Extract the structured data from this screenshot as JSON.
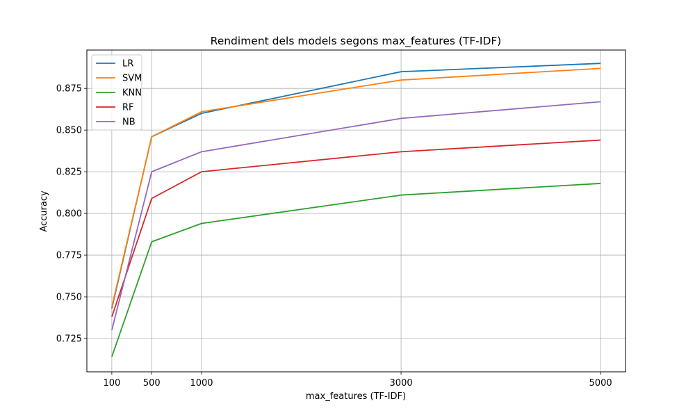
{
  "chart_data": {
    "type": "line",
    "title": "Rendiment dels models segons max_features (TF-IDF)",
    "xlabel": "max_features (TF-IDF)",
    "ylabel": "Accuracy",
    "x": [
      100,
      500,
      1000,
      3000,
      5000
    ],
    "xticks": [
      "100",
      "500",
      "1000",
      "3000",
      "5000"
    ],
    "yticks": [
      "0.725",
      "0.750",
      "0.775",
      "0.800",
      "0.825",
      "0.850",
      "0.875"
    ],
    "ylim": [
      0.705,
      0.898
    ],
    "xlim": [
      -150,
      5250
    ],
    "grid": true,
    "legend_position": "upper-left",
    "series": [
      {
        "name": "LR",
        "color": "#1f77b4",
        "values": [
          0.743,
          0.846,
          0.86,
          0.885,
          0.89
        ]
      },
      {
        "name": "SVM",
        "color": "#ff7f0e",
        "values": [
          0.744,
          0.846,
          0.861,
          0.88,
          0.887
        ]
      },
      {
        "name": "KNN",
        "color": "#2ca02c",
        "values": [
          0.714,
          0.783,
          0.794,
          0.811,
          0.818
        ]
      },
      {
        "name": "RF",
        "color": "#d62728",
        "values": [
          0.738,
          0.809,
          0.825,
          0.837,
          0.844
        ]
      },
      {
        "name": "NB",
        "color": "#9467bd",
        "values": [
          0.73,
          0.825,
          0.837,
          0.857,
          0.867
        ]
      }
    ]
  }
}
